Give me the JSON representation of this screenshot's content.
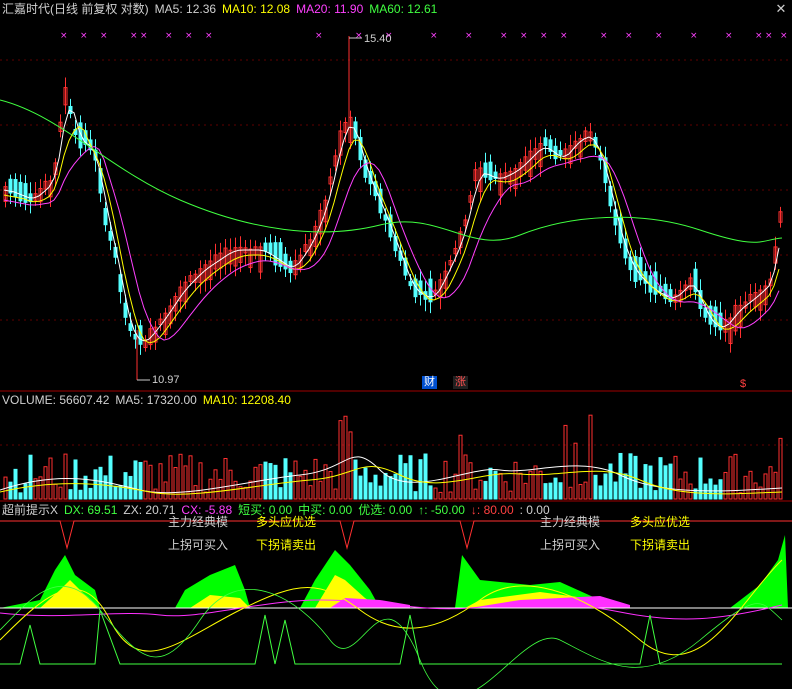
{
  "header": {
    "title": "汇嘉时代(日线 前复权 对数)",
    "ma5": "MA5: 12.36",
    "ma10": "MA10: 12.08",
    "ma20": "MA20: 11.90",
    "ma60": "MA60: 12.61"
  },
  "price_chart": {
    "high_label": "15.40",
    "low_label": "10.97",
    "badge_cai": "财",
    "badge_zhang": "涨",
    "badge_dollar": "$"
  },
  "volume": {
    "volume": "VOLUME: 56607.42",
    "ma5": "MA5: 17320.00",
    "ma10": "MA10: 12208.40"
  },
  "indicator": {
    "name": "超前提示X",
    "dx": "DX: 69.51",
    "zx": "ZX: 20.71",
    "cx": "CX: -5.88",
    "duanmai": "短买: 0.00",
    "zhongmai": "中买: 0.00",
    "youxuan": "优选: 0.00",
    "up": "↑: -50.00",
    "down": "↓: 80.00",
    "extra": ": 0.00",
    "label_main1": "主力经典模",
    "label_duokong1": "多头应优选",
    "label_buy1": "上拐可买入",
    "label_sell1": "下拐请卖出",
    "label_main2": "主力经典模",
    "label_duokong2": "多头应优选",
    "label_buy2": "上拐可买入",
    "label_sell2": "下拐请卖出"
  },
  "colors": {
    "up_candle": "#ff3030",
    "down_candle": "#54ffff",
    "ma5": "#ffffff",
    "ma10": "#ffff00",
    "ma20": "#ff40ff",
    "ma60": "#40ff40"
  }
}
